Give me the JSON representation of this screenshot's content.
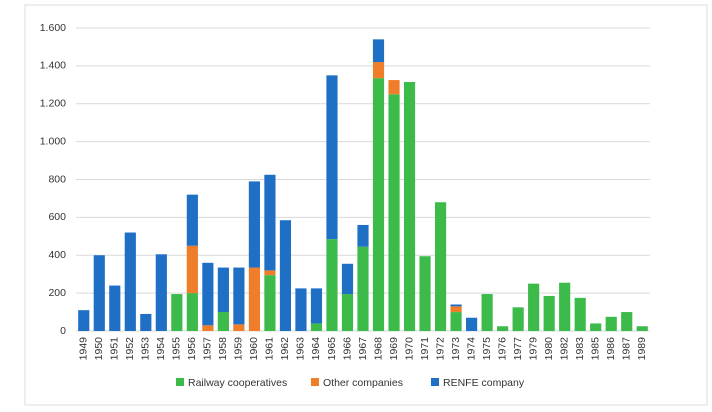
{
  "chart_data": {
    "type": "stacked_bar",
    "categories": [
      "1949",
      "1950",
      "1951",
      "1952",
      "1953",
      "1954",
      "1955",
      "1956",
      "1957",
      "1958",
      "1959",
      "1960",
      "1961",
      "1962",
      "1963",
      "1964",
      "1965",
      "1966",
      "1967",
      "1968",
      "1969",
      "1970",
      "1971",
      "1972",
      "1973",
      "1974",
      "1975",
      "1976",
      "1977",
      "1979",
      "1980",
      "1982",
      "1983",
      "1985",
      "1986",
      "1987",
      "1989"
    ],
    "series": [
      {
        "name": "Railway cooperatives",
        "color": "#3cba4a",
        "values": [
          0,
          0,
          0,
          0,
          0,
          0,
          195,
          200,
          0,
          100,
          0,
          0,
          295,
          0,
          0,
          40,
          485,
          195,
          445,
          1335,
          1250,
          1315,
          395,
          680,
          100,
          0,
          195,
          25,
          125,
          250,
          185,
          255,
          175,
          40,
          75,
          100,
          25
        ]
      },
      {
        "name": "Other companies",
        "color": "#f07d2a",
        "values": [
          0,
          0,
          0,
          0,
          0,
          0,
          0,
          250,
          30,
          0,
          35,
          335,
          25,
          0,
          0,
          0,
          0,
          0,
          0,
          85,
          75,
          0,
          0,
          0,
          30,
          0,
          0,
          0,
          0,
          0,
          0,
          0,
          0,
          0,
          0,
          0,
          0
        ]
      },
      {
        "name": "RENFE company",
        "color": "#1f6fc5",
        "values": [
          110,
          400,
          240,
          520,
          90,
          405,
          0,
          270,
          330,
          235,
          300,
          455,
          505,
          585,
          225,
          185,
          865,
          160,
          115,
          120,
          0,
          0,
          0,
          0,
          10,
          70,
          0,
          0,
          0,
          0,
          0,
          0,
          0,
          0,
          0,
          0,
          0
        ]
      }
    ],
    "ylim": [
      0,
      1600
    ],
    "yticks": [
      0,
      200,
      400,
      600,
      800,
      {
        "value": 1000,
        "label": "1.000"
      },
      {
        "value": 1200,
        "label": "1.200"
      },
      {
        "value": 1400,
        "label": "1.400"
      },
      {
        "value": 1600,
        "label": "1.600"
      }
    ],
    "grid": true,
    "legend": "bottom"
  }
}
